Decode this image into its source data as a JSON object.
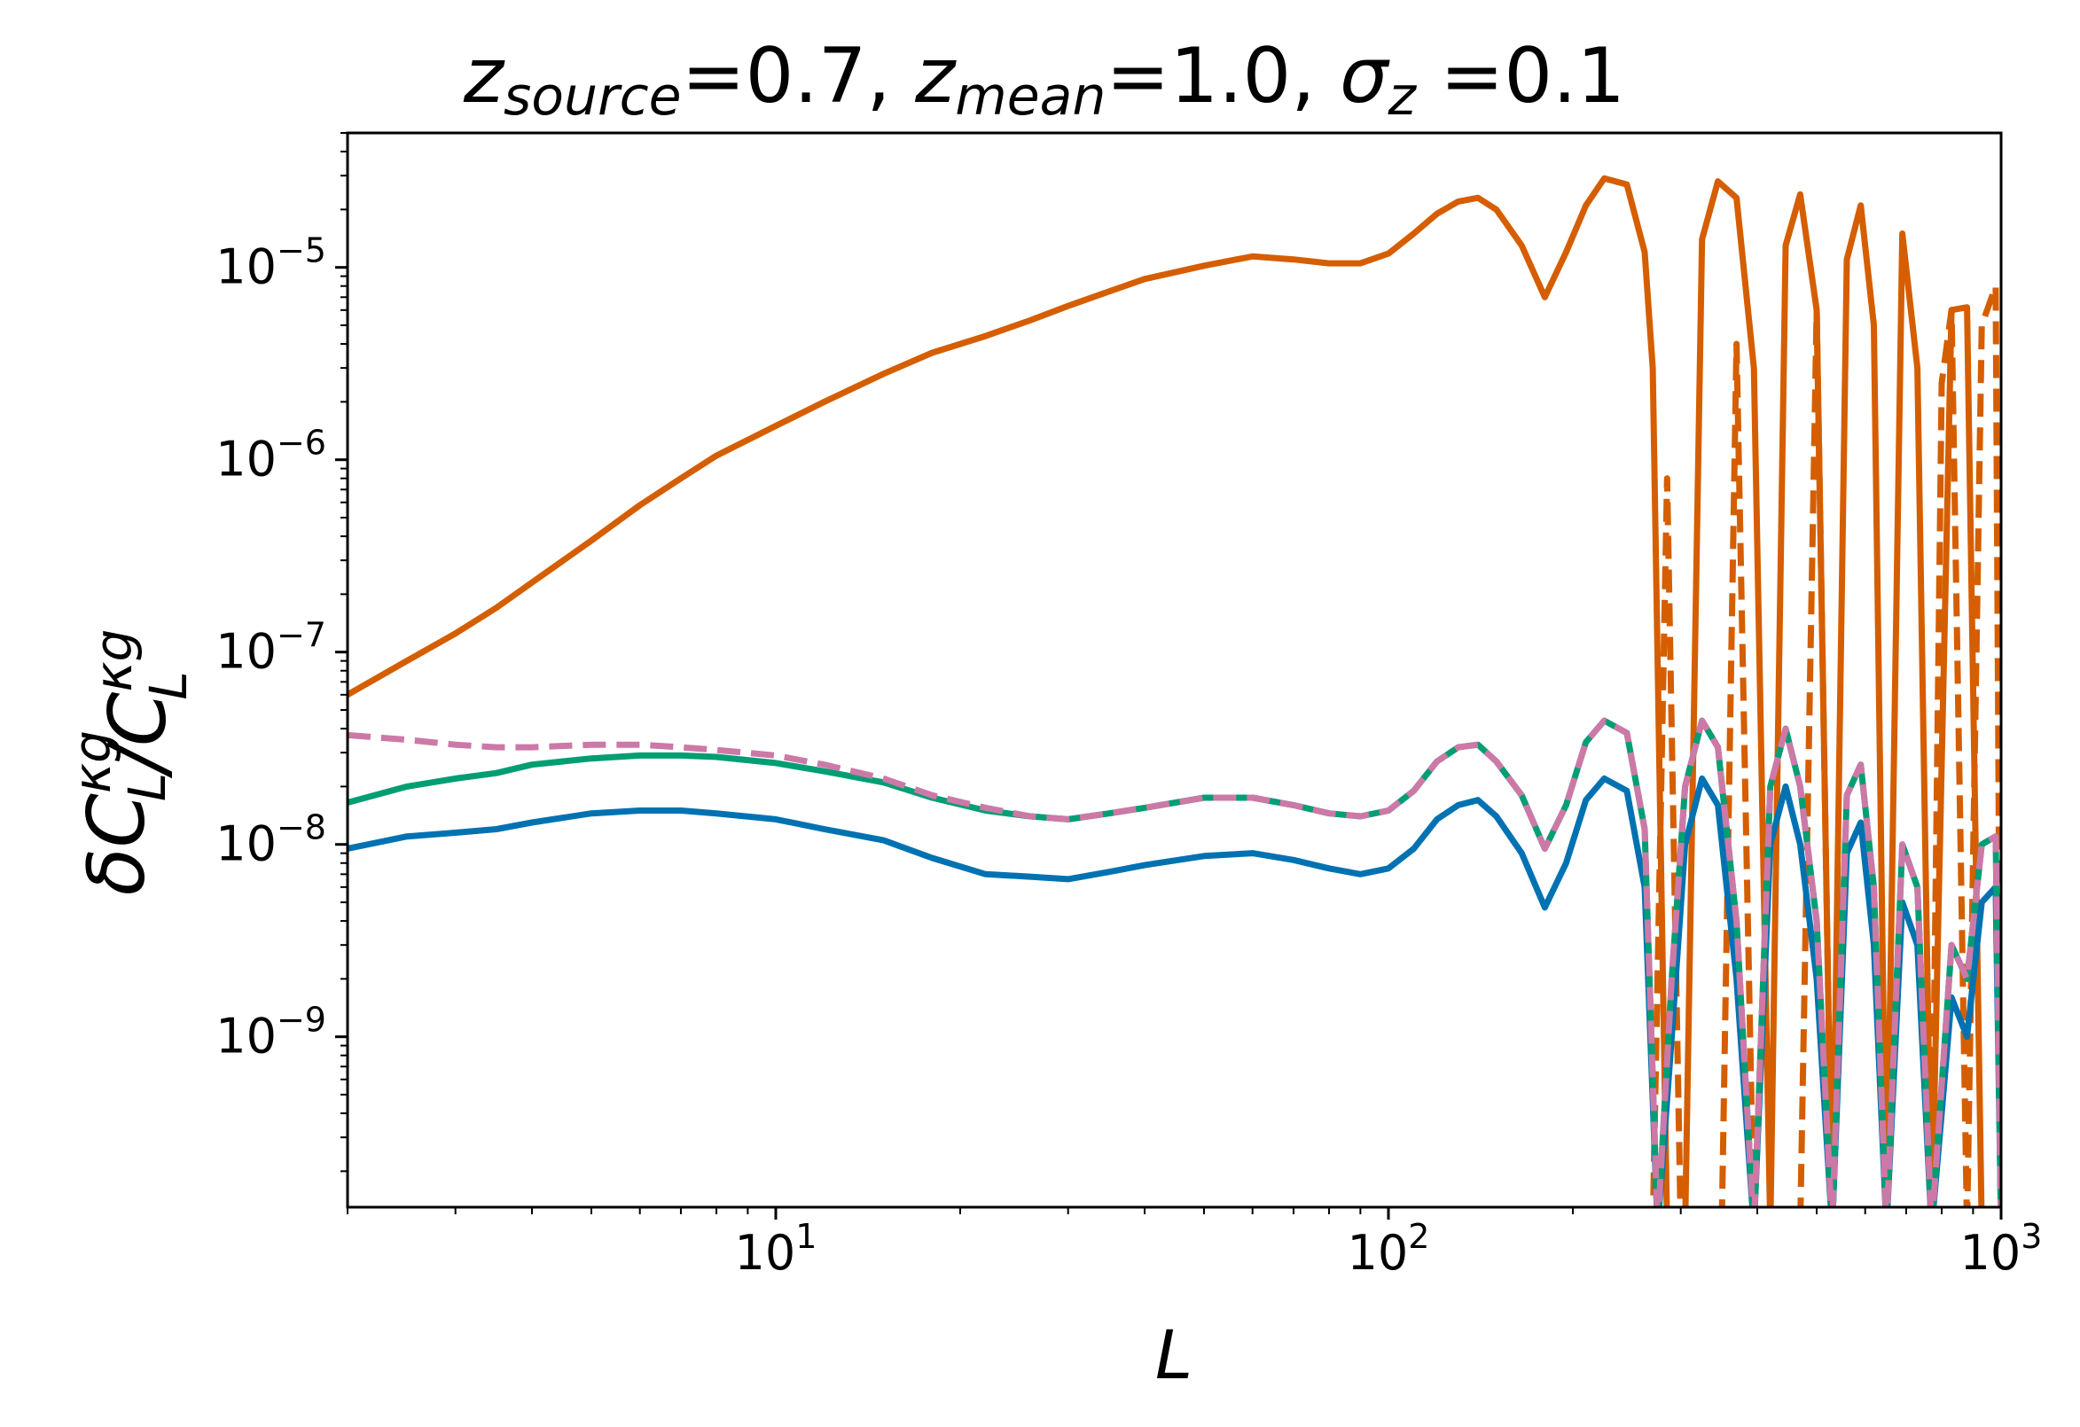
{
  "chart_data": {
    "type": "line",
    "title": {
      "parts": [
        {
          "text": "z",
          "style": "italic",
          "sub": false
        },
        {
          "text": "source",
          "style": "italic",
          "sub": true
        },
        {
          "text": "=0.7, ",
          "style": "normal",
          "sub": false
        },
        {
          "text": "z",
          "style": "italic",
          "sub": false
        },
        {
          "text": "mean",
          "style": "italic",
          "sub": true
        },
        {
          "text": "=1.0, ",
          "style": "normal",
          "sub": false
        },
        {
          "text": "σ",
          "style": "italic",
          "sub": false
        },
        {
          "text": "z",
          "style": "italic",
          "sub": true
        },
        {
          "text": " =0.1",
          "style": "normal",
          "sub": false
        }
      ]
    },
    "xlabel": "L",
    "ylabel": {
      "parts": [
        {
          "text": "δC",
          "sub": "L",
          "sup": "κg"
        },
        {
          "text": "/C",
          "sub": "L",
          "sup": "κg"
        }
      ]
    },
    "xscale": "log",
    "yscale": "log",
    "xlim": [
      2,
      1000
    ],
    "ylim": [
      1.3e-10,
      5e-05
    ],
    "x_ticks": [
      {
        "value": 10,
        "base": "10",
        "exp": "1"
      },
      {
        "value": 100,
        "base": "10",
        "exp": "2"
      },
      {
        "value": 1000,
        "base": "10",
        "exp": "3"
      }
    ],
    "y_ticks": [
      {
        "value": 1e-09,
        "base": "10",
        "exp": "−9"
      },
      {
        "value": 1e-08,
        "base": "10",
        "exp": "−8"
      },
      {
        "value": 1e-07,
        "base": "10",
        "exp": "−7"
      },
      {
        "value": 1e-06,
        "base": "10",
        "exp": "−6"
      },
      {
        "value": 1e-05,
        "base": "10",
        "exp": "−5"
      }
    ],
    "series": [
      {
        "name": "orange-solid",
        "color": "#d55e00",
        "dash": "solid",
        "x": [
          2,
          2.5,
          3,
          3.5,
          4,
          5,
          6,
          7,
          8,
          10,
          12,
          15,
          18,
          22,
          26,
          30,
          35,
          40,
          50,
          60,
          70,
          80,
          90,
          100,
          110,
          120,
          130,
          140,
          150,
          165,
          180,
          195,
          210,
          225,
          245,
          262,
          270,
          285,
          305,
          325,
          345,
          370,
          395,
          420,
          445,
          470,
          500,
          530,
          560,
          590,
          620,
          650,
          690,
          730,
          770,
          830,
          880,
          930,
          980,
          1000
        ],
        "y": [
          6e-08,
          9e-08,
          1.25e-07,
          1.7e-07,
          2.3e-07,
          3.8e-07,
          5.8e-07,
          8e-07,
          1.05e-06,
          1.5e-06,
          2e-06,
          2.8e-06,
          3.6e-06,
          4.4e-06,
          5.3e-06,
          6.3e-06,
          7.5e-06,
          8.7e-06,
          1.02e-05,
          1.14e-05,
          1.1e-05,
          1.05e-05,
          1.05e-05,
          1.18e-05,
          1.5e-05,
          1.9e-05,
          2.2e-05,
          2.3e-05,
          2e-05,
          1.3e-05,
          7e-06,
          1.2e-05,
          2.1e-05,
          2.9e-05,
          2.7e-05,
          1.2e-05,
          3e-06,
          1e-10,
          1e-10,
          1.4e-05,
          2.8e-05,
          2.3e-05,
          3e-06,
          1e-10,
          1.3e-05,
          2.4e-05,
          6e-06,
          1e-10,
          1.1e-05,
          2.1e-05,
          5e-06,
          1e-10,
          1.5e-05,
          3e-06,
          1e-10,
          6e-06,
          6.2e-06,
          1e-10,
          1e-10,
          1e-10
        ]
      },
      {
        "name": "orange-dashed",
        "color": "#d55e00",
        "dash": "dashed",
        "x": [
          270,
          285,
          300,
          325,
          350,
          370,
          395,
          420,
          445,
          470,
          500,
          530,
          560,
          590,
          620,
          650,
          690,
          730,
          770,
          800,
          830,
          880,
          930,
          980,
          1000
        ],
        "y": [
          1e-10,
          8e-07,
          1e-10,
          1e-10,
          1e-10,
          4e-06,
          1e-10,
          1e-10,
          1e-10,
          1e-10,
          6e-06,
          1e-10,
          1e-10,
          1e-10,
          1e-10,
          1e-10,
          1e-10,
          1e-10,
          1e-10,
          2.5e-06,
          6e-06,
          1e-10,
          5e-06,
          8e-06,
          1e-10
        ]
      },
      {
        "name": "blue-solid",
        "color": "#0072b2",
        "dash": "solid",
        "x": [
          2,
          2.5,
          3,
          3.5,
          4,
          5,
          6,
          7,
          8,
          10,
          12,
          15,
          18,
          22,
          26,
          30,
          35,
          40,
          50,
          60,
          70,
          80,
          90,
          100,
          110,
          120,
          130,
          140,
          150,
          165,
          180,
          195,
          210,
          225,
          245,
          262,
          275,
          290,
          305,
          325,
          345,
          370,
          395,
          420,
          445,
          470,
          500,
          530,
          560,
          590,
          620,
          650,
          690,
          730,
          770,
          800,
          830,
          880,
          930,
          980,
          1000
        ],
        "y": [
          9.5e-09,
          1.1e-08,
          1.15e-08,
          1.2e-08,
          1.3e-08,
          1.45e-08,
          1.5e-08,
          1.5e-08,
          1.45e-08,
          1.35e-08,
          1.2e-08,
          1.05e-08,
          8.5e-09,
          7e-09,
          6.8e-09,
          6.6e-09,
          7.2e-09,
          7.8e-09,
          8.7e-09,
          9e-09,
          8.3e-09,
          7.5e-09,
          7e-09,
          7.5e-09,
          9.5e-09,
          1.35e-08,
          1.6e-08,
          1.7e-08,
          1.4e-08,
          9e-09,
          4.7e-09,
          8e-09,
          1.7e-08,
          2.2e-08,
          1.9e-08,
          6e-09,
          1e-10,
          1e-09,
          1e-08,
          2.2e-08,
          1.6e-08,
          2e-09,
          1e-10,
          1e-08,
          2e-08,
          1e-08,
          2e-09,
          1e-10,
          9e-09,
          1.3e-08,
          3e-09,
          1e-10,
          5e-09,
          3e-09,
          1e-10,
          4e-10,
          1.6e-09,
          1e-09,
          5e-09,
          6e-09,
          1e-10
        ]
      },
      {
        "name": "green-solid",
        "color": "#009e73",
        "dash": "solid",
        "x": [
          2,
          2.5,
          3,
          3.5,
          4,
          5,
          6,
          7,
          8,
          10,
          12,
          15,
          18,
          22,
          26,
          30,
          35,
          40,
          50,
          60,
          70,
          80,
          90,
          100,
          110,
          120,
          130,
          140,
          150,
          165,
          180,
          195,
          210,
          225,
          245,
          262,
          275,
          290,
          305,
          325,
          345,
          370,
          395,
          420,
          445,
          470,
          500,
          530,
          560,
          590,
          620,
          650,
          690,
          730,
          770,
          830,
          880,
          930,
          980,
          1000
        ],
        "y": [
          1.65e-08,
          2e-08,
          2.2e-08,
          2.35e-08,
          2.6e-08,
          2.8e-08,
          2.9e-08,
          2.9e-08,
          2.85e-08,
          2.65e-08,
          2.4e-08,
          2.1e-08,
          1.75e-08,
          1.5e-08,
          1.4e-08,
          1.35e-08,
          1.45e-08,
          1.55e-08,
          1.75e-08,
          1.75e-08,
          1.6e-08,
          1.45e-08,
          1.4e-08,
          1.5e-08,
          1.9e-08,
          2.7e-08,
          3.2e-08,
          3.3e-08,
          2.7e-08,
          1.8e-08,
          9.5e-09,
          1.6e-08,
          3.4e-08,
          4.4e-08,
          3.8e-08,
          1.2e-08,
          1e-10,
          2e-09,
          2e-08,
          4.4e-08,
          3.2e-08,
          4e-09,
          1e-10,
          2e-08,
          4e-08,
          2e-08,
          4e-09,
          1e-10,
          1.8e-08,
          2.6e-08,
          6e-09,
          1e-10,
          1e-08,
          6e-09,
          1e-10,
          3e-09,
          2e-09,
          1e-08,
          1.1e-08,
          1e-10
        ]
      },
      {
        "name": "pink-dashed",
        "color": "#cc79a7",
        "dash": "dashed",
        "x": [
          2,
          2.5,
          3,
          3.5,
          4,
          5,
          6,
          7,
          8,
          10,
          12,
          15,
          18,
          22,
          26,
          30,
          35,
          40,
          50,
          60,
          70,
          80,
          90,
          100,
          110,
          120,
          130,
          140,
          150,
          165,
          180,
          195,
          210,
          225,
          245,
          262,
          275,
          290,
          305,
          325,
          345,
          370,
          395,
          420,
          445,
          470,
          500,
          530,
          560,
          590,
          620,
          650,
          690,
          730,
          770,
          830,
          880,
          930,
          980,
          1000
        ],
        "y": [
          3.7e-08,
          3.5e-08,
          3.3e-08,
          3.2e-08,
          3.2e-08,
          3.3e-08,
          3.3e-08,
          3.2e-08,
          3.1e-08,
          2.9e-08,
          2.6e-08,
          2.2e-08,
          1.8e-08,
          1.55e-08,
          1.4e-08,
          1.35e-08,
          1.45e-08,
          1.55e-08,
          1.75e-08,
          1.75e-08,
          1.6e-08,
          1.45e-08,
          1.4e-08,
          1.5e-08,
          1.9e-08,
          2.7e-08,
          3.2e-08,
          3.3e-08,
          2.7e-08,
          1.8e-08,
          9.5e-09,
          1.6e-08,
          3.4e-08,
          4.4e-08,
          3.8e-08,
          1.2e-08,
          1e-10,
          2e-09,
          2e-08,
          4.4e-08,
          3.2e-08,
          4e-09,
          1e-10,
          2e-08,
          4e-08,
          2e-08,
          4e-09,
          1e-10,
          1.8e-08,
          2.6e-08,
          6e-09,
          1e-10,
          1e-08,
          6e-09,
          1e-10,
          3e-09,
          2e-09,
          1e-08,
          1.1e-08,
          1e-10
        ]
      }
    ]
  }
}
